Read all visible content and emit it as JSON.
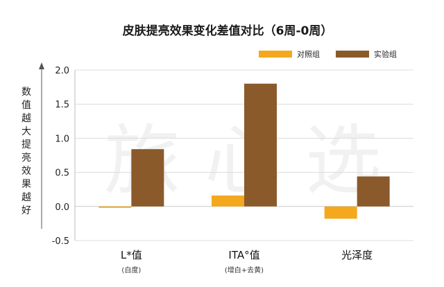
{
  "chart_data": {
    "type": "bar",
    "title": "皮肤提亮效果变化差值对比（6周-0周）",
    "ylabel": "数值越大提亮效果越好",
    "categories": [
      "L*值",
      "ITA°值",
      "光泽度"
    ],
    "category_sublabels": [
      "(白度)",
      "(增白+去黄)",
      ""
    ],
    "yticks": [
      "2.0",
      "1.5",
      "1.0",
      "0.5",
      "0.0",
      "-0.5"
    ],
    "ylim": [
      -0.5,
      2.0
    ],
    "grid": true,
    "legend_position": "top-right",
    "series": [
      {
        "name": "对照组",
        "color": "#F3A81E",
        "values": [
          -0.02,
          0.16,
          -0.18
        ]
      },
      {
        "name": "实验组",
        "color": "#8B5A2B",
        "values": [
          0.84,
          1.8,
          0.44
        ]
      }
    ],
    "watermark": "旅 心 选"
  }
}
